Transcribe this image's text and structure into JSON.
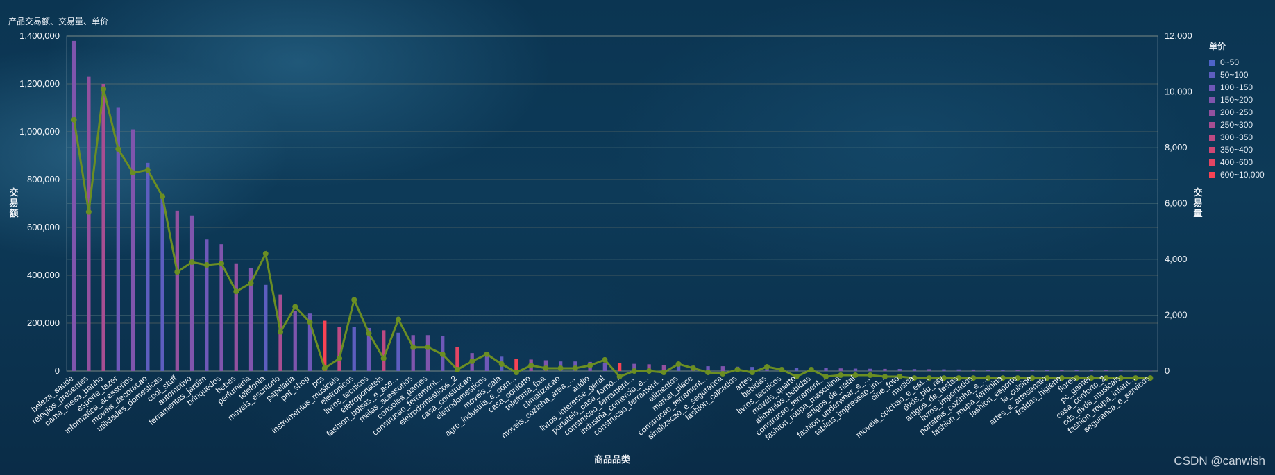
{
  "title": "产品交易额、交易量、单价",
  "watermark": "CSDN @canwish",
  "chart_data": {
    "type": "bar",
    "xlabel": "商品品类",
    "ylabel_left": "交易额",
    "ylabel_right": "交易量",
    "ylim_left": [
      0,
      1400000
    ],
    "ylim_right": [
      0,
      12000
    ],
    "yticks_left": [
      "0",
      "200,000",
      "400,000",
      "600,000",
      "800,000",
      "1,000,000",
      "1,200,000",
      "1,400,000"
    ],
    "yticks_right": [
      "0",
      "2,000",
      "4,000",
      "6,000",
      "8,000",
      "10,000",
      "12,000"
    ],
    "visual_map": {
      "title": "单价",
      "ranges": [
        {
          "label": "0~50",
          "color": "#4e63c8"
        },
        {
          "label": "50~100",
          "color": "#5d5ebf"
        },
        {
          "label": "100~150",
          "color": "#6e58b8"
        },
        {
          "label": "150~200",
          "color": "#7f55ad"
        },
        {
          "label": "200~250",
          "color": "#93519f"
        },
        {
          "label": "250~300",
          "color": "#a74e92"
        },
        {
          "label": "300~350",
          "color": "#bc4a83"
        },
        {
          "label": "350~400",
          "color": "#d04774"
        },
        {
          "label": "400~600",
          "color": "#e34563"
        },
        {
          "label": "600~10,000",
          "color": "#f84354"
        }
      ]
    },
    "line_color": "#6b8e23",
    "categories": [
      "beleza_saude",
      "relogios_presentes",
      "cama_mesa_banho",
      "esporte_lazer",
      "informatica_acessorios",
      "moveis_decoracao",
      "utilidades_domesticas",
      "cool_stuff",
      "automotivo",
      "ferramentas_jardim",
      "brinquedos",
      "bebes",
      "perfumaria",
      "telefonia",
      "moveis_escritorio",
      "papelaria",
      "pet_shop",
      "pcs",
      "instrumentos_musicais",
      "eletronicos",
      "livros_tecnicos",
      "eletroportateis",
      "fashion_bolsas_e_ace...",
      "malas_acessorios",
      "consoles_games",
      "construcao_ferrament...",
      "eletrodomesticos_2",
      "casa_construcao",
      "eletrodomesticos",
      "moveis_sala",
      "agro_industria_e_com...",
      "casa_conforto",
      "telefonia_fixa",
      "climatizacao",
      "moveis_cozinha_area_...",
      "audio",
      "livros_interesse_geral",
      "portateis_casa_forno...",
      "construcao_ferrament...",
      "industria_comercio_e...",
      "construcao_ferrament...",
      "alimentos",
      "market_place",
      "construcao_ferrament...",
      "sinalizacao_e_seguranca",
      "fashion_calcados",
      "artes",
      "bebidas",
      "livros_tecnicos",
      "moveis_quarto",
      "alimentos_bebidas",
      "construcao_ferrament...",
      "fashion_roupa_masculina",
      "artigos_de_natal",
      "fashion_underwear_e_...",
      "tablets_impressao_im...",
      "cine_foto",
      "musica",
      "moveis_colchao_e_est...",
      "dvds_blu_ray",
      "artigos_de_festas",
      "livros_importados",
      "portateis_cozinha_e_...",
      "fashion_roupa_feminina",
      "fashion_esporte",
      "la_cuisine",
      "artes_e_artesanato",
      "fraldas_higiene",
      "flores",
      "pc_gamer",
      "casa_conforto_2",
      "cds_dvds_musicais",
      "fashion_roupa_infant...",
      "seguranca_e_servicos"
    ],
    "visible_xtick_labels": [
      "beleza_saude",
      "relogios_presentes",
      "cama_mesa_banho",
      "esporte_lazer",
      "informatica_acessorios",
      "moveis_decoracao",
      "utilidades_domesticas",
      "cool_stuff",
      "automotivo",
      "ferramentas_jardim",
      "brinquedos",
      "bebes",
      "perfumaria",
      "telefonia",
      "moveis_escritorio",
      "papelaria",
      "pet_shop",
      "pcs",
      "instrumentos_musicais",
      "eletronicos",
      "livros_tecnicos",
      "eletroportateis",
      "fashion_bolsas_e_ace...",
      "malas_acessorios",
      "consoles_games",
      "construcao_ferrament...",
      "eletrodomesticos_2",
      "casa_construcao",
      "eletrodomesticos",
      "moveis_sala",
      "agro_industria_e_com...",
      "casa_conforto",
      "telefonia_fixa",
      "climatizacao",
      "moveis_cozinha_area_...",
      "audio",
      "livros_interesse_geral",
      "portateis_casa_forno...",
      "construcao_ferrament...",
      "industria_comercio_e...",
      "construcao_ferrament...",
      "alimentos",
      "market_place",
      "construcao_ferrament...",
      "sinalizacao_e_seguranca",
      "fashion_calcados",
      "artes",
      "bebidas",
      "livros_tecnicos",
      "moveis_quarto",
      "alimentos_bebidas",
      "construcao_ferrament...",
      "fashion_roupa_masculina",
      "artigos_de_natal",
      "fashion_underwear_e_...",
      "tablets_impressao_im...",
      "cine_foto",
      "musica",
      "moveis_colchao_e_est...",
      "dvds_blu_ray",
      "artigos_de_festas",
      "livros_importados",
      "portateis_cozinha_e_...",
      "fashion_roupa_feminina",
      "fashion_esporte",
      "la_cuisine",
      "artes_e_artesanato",
      "fraldas_higiene",
      "flores",
      "pc_gamer",
      "casa_conforto_2",
      "cds_dvds_musicais",
      "fashion_roupa_infant...",
      "seguranca_e_servicos"
    ],
    "series": [
      {
        "name": "交易额",
        "type": "bar",
        "axis": "left",
        "values": [
          1380000,
          1230000,
          1200000,
          1100000,
          1010000,
          870000,
          740000,
          670000,
          650000,
          550000,
          530000,
          450000,
          430000,
          360000,
          320000,
          250000,
          240000,
          210000,
          185000,
          185000,
          180000,
          170000,
          160000,
          150000,
          150000,
          145000,
          100000,
          75000,
          70000,
          60000,
          50000,
          48000,
          45000,
          40000,
          40000,
          38000,
          35000,
          32000,
          30000,
          28000,
          26000,
          24000,
          22000,
          20000,
          20000,
          18000,
          17000,
          16000,
          15000,
          14000,
          13000,
          12000,
          11000,
          10000,
          9500,
          9000,
          8500,
          8000,
          7500,
          7000,
          6500,
          6000,
          5500,
          5000,
          4500,
          4000,
          3800,
          3500,
          3200,
          3000,
          2800,
          2500,
          2000,
          1500
        ],
        "price_band_index": [
          3,
          4,
          5,
          2,
          3,
          1,
          1,
          4,
          3,
          2,
          3,
          4,
          3,
          1,
          5,
          3,
          2,
          9,
          6,
          1,
          2,
          6,
          1,
          3,
          3,
          2,
          8,
          3,
          2,
          1,
          9,
          4,
          3,
          2,
          2,
          3,
          2,
          9,
          3,
          4,
          4,
          1,
          3,
          2,
          3,
          2,
          1,
          2,
          3,
          1,
          3,
          2,
          3,
          2,
          2,
          3,
          2,
          2,
          3,
          2,
          2,
          3,
          2,
          2,
          3,
          2,
          2,
          3,
          2,
          2,
          3,
          2,
          2,
          3
        ]
      },
      {
        "name": "交易量",
        "type": "line",
        "axis": "right",
        "values": [
          9000,
          5700,
          10100,
          7950,
          7100,
          7200,
          6250,
          3550,
          3900,
          3800,
          3850,
          2850,
          3150,
          4200,
          1400,
          2300,
          1750,
          100,
          450,
          2550,
          1350,
          450,
          1850,
          850,
          850,
          600,
          50,
          350,
          600,
          250,
          -50,
          200,
          100,
          100,
          100,
          200,
          400,
          -200,
          0,
          0,
          -50,
          250,
          100,
          -50,
          -100,
          50,
          -50,
          150,
          50,
          -200,
          50,
          -200,
          -150,
          -150,
          -150,
          -200,
          -200,
          -250,
          -250,
          -250,
          -250,
          -250,
          -250,
          -250,
          -250,
          -250,
          -250,
          -250,
          -250,
          -250,
          -250,
          -250,
          -250,
          -250
        ]
      }
    ],
    "grid": true,
    "legend_position": "right"
  }
}
